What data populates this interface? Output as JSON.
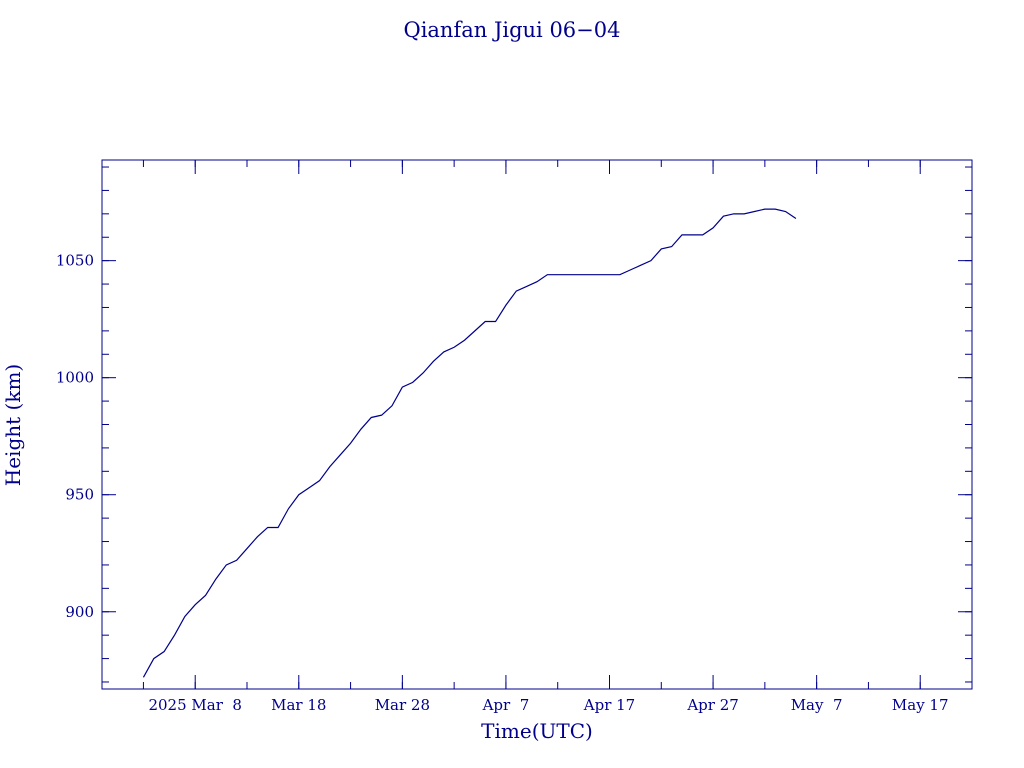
{
  "chart_data": {
    "type": "line",
    "title": "Qianfan Jigui 06−04",
    "x_label": "Time(UTC)",
    "y_label": "Height (km)",
    "color": "#00008b",
    "x": [
      "2025-03-03",
      "2025-03-04",
      "2025-03-05",
      "2025-03-06",
      "2025-03-07",
      "2025-03-08",
      "2025-03-09",
      "2025-03-10",
      "2025-03-11",
      "2025-03-12",
      "2025-03-13",
      "2025-03-14",
      "2025-03-15",
      "2025-03-16",
      "2025-03-17",
      "2025-03-18",
      "2025-03-19",
      "2025-03-20",
      "2025-03-21",
      "2025-03-22",
      "2025-03-23",
      "2025-03-24",
      "2025-03-25",
      "2025-03-26",
      "2025-03-27",
      "2025-03-28",
      "2025-03-29",
      "2025-03-30",
      "2025-03-31",
      "2025-04-01",
      "2025-04-02",
      "2025-04-03",
      "2025-04-04",
      "2025-04-05",
      "2025-04-06",
      "2025-04-07",
      "2025-04-08",
      "2025-04-09",
      "2025-04-10",
      "2025-04-11",
      "2025-04-12",
      "2025-04-13",
      "2025-04-14",
      "2025-04-15",
      "2025-04-16",
      "2025-04-17",
      "2025-04-18",
      "2025-04-19",
      "2025-04-20",
      "2025-04-21",
      "2025-04-22",
      "2025-04-23",
      "2025-04-24",
      "2025-04-25",
      "2025-04-26",
      "2025-04-27",
      "2025-04-28",
      "2025-04-29",
      "2025-04-30",
      "2025-05-01",
      "2025-05-02",
      "2025-05-03",
      "2025-05-04",
      "2025-05-05"
    ],
    "values": [
      872,
      880,
      883,
      890,
      898,
      903,
      907,
      914,
      920,
      922,
      927,
      932,
      936,
      936,
      944,
      950,
      953,
      956,
      962,
      967,
      972,
      978,
      983,
      984,
      988,
      996,
      998,
      1002,
      1007,
      1011,
      1013,
      1016,
      1020,
      1024,
      1024,
      1031,
      1037,
      1039,
      1041,
      1044,
      1044,
      1044,
      1044,
      1044,
      1044,
      1044,
      1044,
      1046,
      1048,
      1050,
      1055,
      1056,
      1061,
      1061,
      1061,
      1064,
      1069,
      1070,
      1070,
      1071,
      1072,
      1072,
      1071,
      1068
    ],
    "xlim": [
      "2025-02-27",
      "2025-05-22"
    ],
    "xticks": [
      {
        "value": "2025-03-08",
        "label": "2025 Mar  8"
      },
      {
        "value": "2025-03-18",
        "label": "Mar 18"
      },
      {
        "value": "2025-03-28",
        "label": "Mar 28"
      },
      {
        "value": "2025-04-07",
        "label": "Apr  7"
      },
      {
        "value": "2025-04-17",
        "label": "Apr 17"
      },
      {
        "value": "2025-04-27",
        "label": "Apr 27"
      },
      {
        "value": "2025-05-07",
        "label": "May  7"
      },
      {
        "value": "2025-05-17",
        "label": "May 17"
      }
    ],
    "ylim": [
      867,
      1093
    ],
    "yticks": [
      900,
      950,
      1000,
      1050
    ],
    "grid": false
  }
}
